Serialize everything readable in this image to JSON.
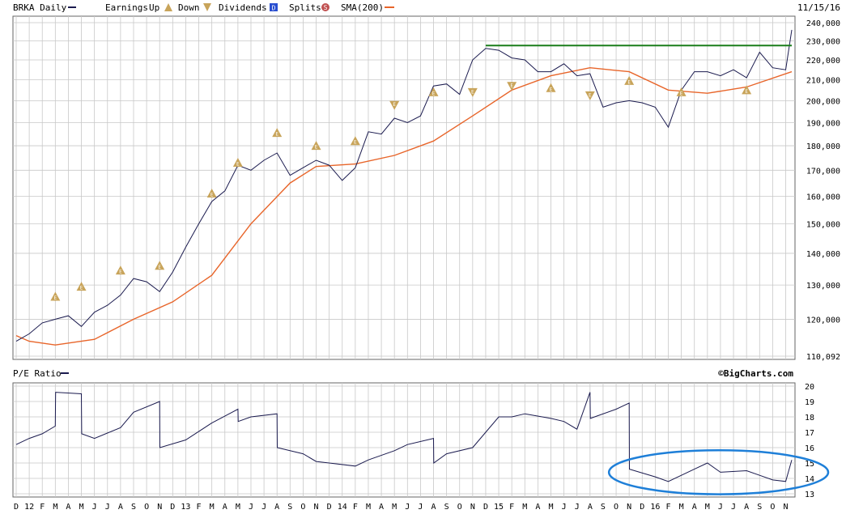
{
  "header": {
    "symbol_label": "BRKA Daily",
    "earnings_label": "Earnings",
    "up_label": "Up",
    "down_label": "Down",
    "dividends_label": "Dividends",
    "dividends_glyph": "D",
    "splits_label": "Splits",
    "splits_glyph": "S",
    "sma_label": "SMA(200)",
    "earnings_glyph": "E",
    "date": "11/15/16"
  },
  "pe_header": {
    "label": "P/E Ratio",
    "copyright": "©BigCharts.com"
  },
  "colors": {
    "price": "#1b1b4f",
    "sma": "#e8652a",
    "resistance": "#1a7d1a",
    "earnings": "#c8a45a",
    "grid": "#c8c8c8",
    "highlight": "#1e7fd8",
    "dividends": "#2a4fd0",
    "splits": "#c05050"
  },
  "chart_data": [
    {
      "type": "line",
      "title": "BRKA Daily",
      "x_range": [
        "2011-12",
        "2016-11-15"
      ],
      "y_ticks": [
        "240,000",
        "230,000",
        "220,000",
        "210,000",
        "200,000",
        "190,000",
        "180,000",
        "170,000",
        "160,000",
        "150,000",
        "140,000",
        "130,000",
        "120,000",
        "110,092"
      ],
      "ylim": [
        110092,
        240000
      ],
      "y_scale": "log",
      "grid": true,
      "series": [
        {
          "name": "BRKA Daily",
          "x": [
            "2011-12",
            "2012-01",
            "2012-02",
            "2012-03",
            "2012-04",
            "2012-05",
            "2012-06",
            "2012-07",
            "2012-08",
            "2012-09",
            "2012-10",
            "2012-11",
            "2012-12",
            "2013-01",
            "2013-02",
            "2013-03",
            "2013-04",
            "2013-05",
            "2013-06",
            "2013-07",
            "2013-08",
            "2013-09",
            "2013-10",
            "2013-11",
            "2013-12",
            "2014-01",
            "2014-02",
            "2014-03",
            "2014-04",
            "2014-05",
            "2014-06",
            "2014-07",
            "2014-08",
            "2014-09",
            "2014-10",
            "2014-11",
            "2014-12",
            "2015-01",
            "2015-02",
            "2015-03",
            "2015-04",
            "2015-05",
            "2015-06",
            "2015-07",
            "2015-08",
            "2015-09",
            "2015-10",
            "2015-11",
            "2015-12",
            "2016-01",
            "2016-02",
            "2016-03",
            "2016-04",
            "2016-05",
            "2016-06",
            "2016-07",
            "2016-08",
            "2016-09",
            "2016-10",
            "2016-11",
            "2016-11-15"
          ],
          "values": [
            114000,
            116000,
            119000,
            120000,
            121000,
            118000,
            122000,
            124000,
            127000,
            132000,
            131000,
            128000,
            134000,
            142000,
            150000,
            158000,
            162000,
            172000,
            170000,
            174000,
            177000,
            168000,
            171000,
            174000,
            172000,
            166000,
            171000,
            186000,
            185000,
            192000,
            190000,
            193000,
            207000,
            208000,
            203000,
            220000,
            226000,
            225000,
            221000,
            220000,
            214000,
            214000,
            218000,
            212000,
            213000,
            197000,
            199000,
            200000,
            199000,
            197000,
            188000,
            205000,
            214000,
            214000,
            212000,
            215000,
            211000,
            224000,
            216000,
            215000,
            236000
          ]
        },
        {
          "name": "SMA(200)",
          "x": [
            "2011-12",
            "2012-01",
            "2012-03",
            "2012-06",
            "2012-09",
            "2012-12",
            "2013-03",
            "2013-06",
            "2013-09",
            "2013-11",
            "2014-02",
            "2014-05",
            "2014-08",
            "2014-11",
            "2015-02",
            "2015-05",
            "2015-08",
            "2015-11",
            "2016-02",
            "2016-05",
            "2016-08",
            "2016-11-15"
          ],
          "values": [
            115500,
            114000,
            113000,
            114500,
            120000,
            125000,
            133000,
            150000,
            165000,
            171500,
            172500,
            176000,
            182000,
            193000,
            205000,
            212000,
            216000,
            214000,
            205000,
            203500,
            206500,
            214000
          ]
        }
      ],
      "resistance_level": 227500,
      "earnings_markers": [
        {
          "x": "2012-03",
          "dir": "up",
          "y": 126500
        },
        {
          "x": "2012-05",
          "dir": "up",
          "y": 129500
        },
        {
          "x": "2012-08",
          "dir": "up",
          "y": 134500
        },
        {
          "x": "2012-11",
          "dir": "up",
          "y": 136000
        },
        {
          "x": "2013-03",
          "dir": "up",
          "y": 161000
        },
        {
          "x": "2013-05",
          "dir": "up",
          "y": 173000
        },
        {
          "x": "2013-08",
          "dir": "up",
          "y": 185500
        },
        {
          "x": "2013-11",
          "dir": "up",
          "y": 180000
        },
        {
          "x": "2014-02",
          "dir": "up",
          "y": 182000
        },
        {
          "x": "2014-05",
          "dir": "down",
          "y": 198000
        },
        {
          "x": "2014-08",
          "dir": "up",
          "y": 204000
        },
        {
          "x": "2014-11",
          "dir": "down",
          "y": 204000
        },
        {
          "x": "2015-02",
          "dir": "down",
          "y": 207000
        },
        {
          "x": "2015-05",
          "dir": "up",
          "y": 206000
        },
        {
          "x": "2015-08",
          "dir": "down",
          "y": 202500
        },
        {
          "x": "2015-11",
          "dir": "up",
          "y": 209500
        },
        {
          "x": "2016-03",
          "dir": "up",
          "y": 204000
        },
        {
          "x": "2016-08",
          "dir": "up",
          "y": 205000
        }
      ]
    },
    {
      "type": "line",
      "title": "P/E Ratio",
      "y_ticks": [
        "20",
        "19",
        "18",
        "17",
        "16",
        "15",
        "14",
        "13"
      ],
      "ylim": [
        13,
        20
      ],
      "grid": true,
      "x_labels": [
        "D",
        "12",
        "F",
        "M",
        "A",
        "M",
        "J",
        "J",
        "A",
        "S",
        "O",
        "N",
        "D",
        "13",
        "F",
        "M",
        "A",
        "M",
        "J",
        "J",
        "A",
        "S",
        "O",
        "N",
        "D",
        "14",
        "F",
        "M",
        "A",
        "M",
        "J",
        "J",
        "A",
        "S",
        "O",
        "N",
        "D",
        "15",
        "F",
        "M",
        "A",
        "M",
        "J",
        "J",
        "A",
        "S",
        "O",
        "N",
        "D",
        "16",
        "F",
        "M",
        "A",
        "M",
        "J",
        "J",
        "A",
        "S",
        "O",
        "N"
      ],
      "series": [
        {
          "name": "P/E Ratio",
          "x": [
            "2011-12",
            "2012-01",
            "2012-02",
            "2012-03",
            "2012-03b",
            "2012-05",
            "2012-05b",
            "2012-06",
            "2012-08",
            "2012-09",
            "2012-11",
            "2012-11b",
            "2013-01",
            "2013-03",
            "2013-05",
            "2013-05b",
            "2013-06",
            "2013-08",
            "2013-08b",
            "2013-10",
            "2013-11",
            "2013-12",
            "2014-02",
            "2014-03",
            "2014-05",
            "2014-06",
            "2014-08",
            "2014-08b",
            "2014-09",
            "2014-11",
            "2015-01",
            "2015-02",
            "2015-03",
            "2015-05",
            "2015-06",
            "2015-07",
            "2015-08",
            "2015-08b",
            "2015-10",
            "2015-11",
            "2015-11b",
            "2016-01",
            "2016-02",
            "2016-04",
            "2016-05",
            "2016-06",
            "2016-08",
            "2016-09",
            "2016-10",
            "2016-11-01",
            "2016-11-15"
          ],
          "values": [
            16.2,
            16.6,
            16.9,
            17.4,
            19.6,
            19.5,
            16.9,
            16.6,
            17.3,
            18.3,
            19.0,
            16.0,
            16.5,
            17.6,
            18.5,
            17.7,
            18.0,
            18.2,
            16.0,
            15.6,
            15.1,
            15.0,
            14.8,
            15.2,
            15.8,
            16.2,
            16.6,
            15.0,
            15.6,
            16.0,
            18.0,
            18.0,
            18.2,
            17.9,
            17.7,
            17.2,
            19.6,
            17.9,
            18.5,
            18.9,
            14.6,
            14.1,
            13.8,
            14.6,
            15.0,
            14.4,
            14.5,
            14.2,
            13.9,
            13.8,
            15.2
          ]
        }
      ],
      "highlight": {
        "x_range": [
          "2015-11",
          "2016-11-15"
        ],
        "y_range": [
          13.6,
          15.3
        ],
        "shape": "ellipse"
      }
    }
  ]
}
